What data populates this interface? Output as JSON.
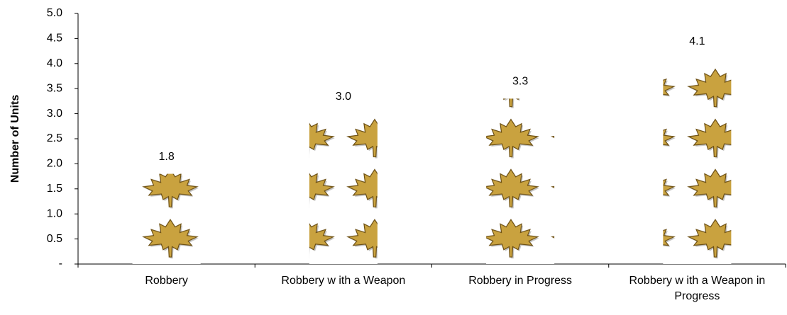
{
  "chart_data": {
    "type": "pictograph",
    "y_label": "Number of Units",
    "categories": [
      "Robbery",
      "Robbery w ith a Weapon",
      "Robbery in Progress",
      "Robbery w ith a Weapon in Progress"
    ],
    "values": [
      1.8,
      3.0,
      3.3,
      4.1
    ],
    "value_labels": [
      "1.8",
      "3.0",
      "3.3",
      "4.1"
    ],
    "color": "#c9a23f",
    "ylim": [
      0,
      5
    ],
    "yticks": [
      {
        "value": 0,
        "label": "-"
      },
      0.5,
      {
        "value": 1,
        "label": "1.0"
      },
      1.5,
      {
        "value": 2,
        "label": "2.0"
      },
      2.5,
      {
        "value": 3,
        "label": "3.0"
      },
      3.5,
      {
        "value": 4,
        "label": "4.0"
      },
      4.5,
      {
        "value": 5,
        "label": "5.0"
      }
    ]
  }
}
